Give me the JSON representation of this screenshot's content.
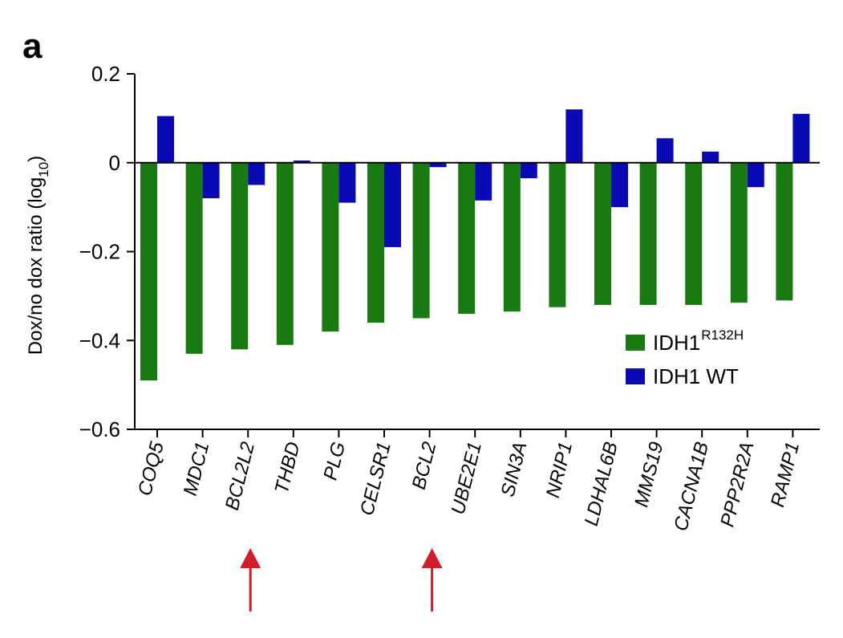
{
  "panel_label": "a",
  "chart_data": {
    "type": "bar",
    "ylabel": "Dox/no dox ratio (log",
    "ylabel_sub": "10",
    "ylabel_close": ")",
    "ylim": [
      -0.6,
      0.2
    ],
    "yticks": [
      0.2,
      0,
      -0.2,
      -0.4,
      -0.6
    ],
    "ytick_labels": [
      "0.2",
      "0",
      "−0.2",
      "−0.4",
      "−0.6"
    ],
    "categories": [
      "COQ5",
      "MDC1",
      "BCL2L2",
      "THBD",
      "PLG",
      "CELSR1",
      "BCL2",
      "UBE2E1",
      "SIN3A",
      "NRIP1",
      "LDHAL6B",
      "MMS19",
      "CACNA1B",
      "PPP2R2A",
      "RAMP1"
    ],
    "series": [
      {
        "name": "IDH1",
        "name_sup": "R132H",
        "color": "#1a7a12",
        "values": [
          -0.49,
          -0.43,
          -0.42,
          -0.41,
          -0.38,
          -0.36,
          -0.35,
          -0.34,
          -0.335,
          -0.325,
          -0.32,
          -0.32,
          -0.32,
          -0.315,
          -0.31
        ]
      },
      {
        "name": "IDH1 WT",
        "name_sup": "",
        "color": "#0a0ab4",
        "values": [
          0.105,
          -0.08,
          -0.05,
          0.005,
          -0.09,
          -0.19,
          -0.01,
          -0.085,
          -0.035,
          0.12,
          -0.1,
          0.055,
          0.025,
          -0.055,
          0.11
        ]
      }
    ],
    "grid": false,
    "legend_position": "lower-right",
    "annotations": [
      {
        "type": "arrow",
        "target_category": "BCL2L2",
        "color": "#d01f2a"
      },
      {
        "type": "arrow",
        "target_category": "BCL2",
        "color": "#d01f2a"
      }
    ]
  }
}
